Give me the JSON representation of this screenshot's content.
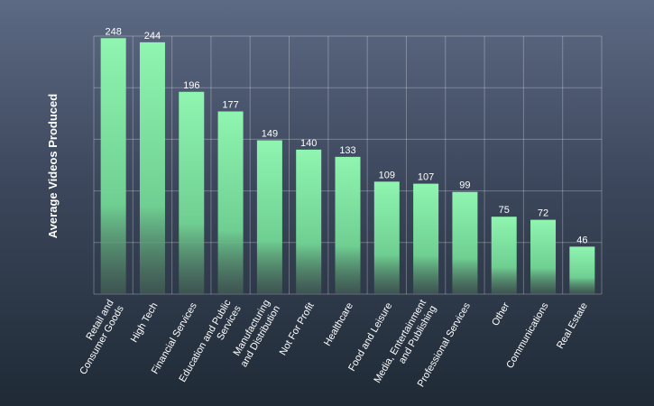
{
  "chart_data": {
    "type": "bar",
    "ylabel": "Average  Videos Produced",
    "categories": [
      [
        "Retail and",
        "Consumer Goods"
      ],
      [
        "High Tech"
      ],
      [
        "Financial Services"
      ],
      [
        "Education and Public",
        "Services"
      ],
      [
        "Manufacturing",
        "and Distribution"
      ],
      [
        "Not For Profit"
      ],
      [
        "Healthcare"
      ],
      [
        "Food and Leisure"
      ],
      [
        "Media, Entertainment",
        "and Publishing"
      ],
      [
        "Professional Services"
      ],
      [
        "Other"
      ],
      [
        "Communications"
      ],
      [
        "Real Estate"
      ]
    ],
    "values": [
      248,
      244,
      196,
      177,
      149,
      140,
      133,
      109,
      107,
      99,
      75,
      72,
      46
    ],
    "ylim": [
      0,
      250
    ],
    "grid": true,
    "bar_color_top": "#8ff5b0",
    "bar_color_bottom": "#4a6a58"
  }
}
